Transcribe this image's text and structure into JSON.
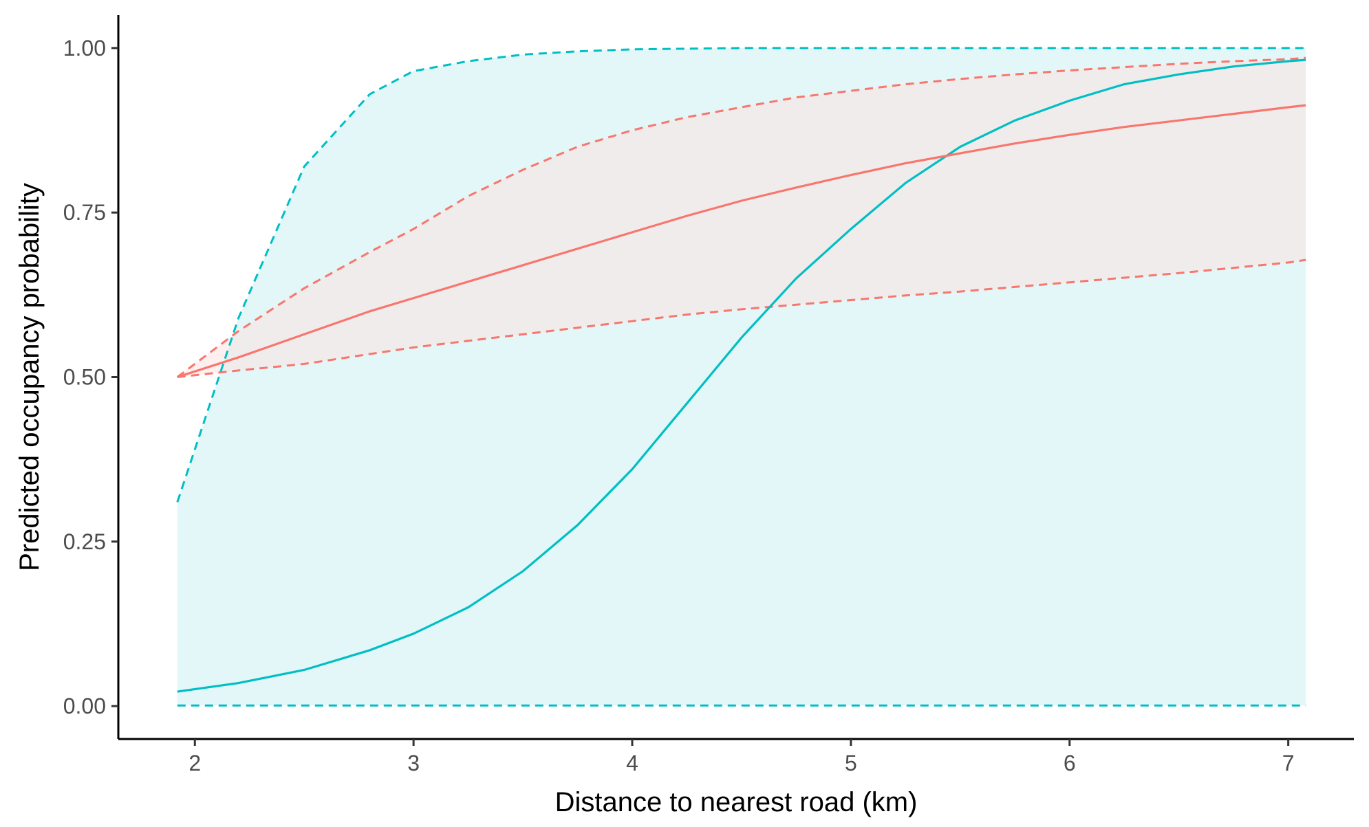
{
  "chart_data": {
    "type": "line",
    "title": "",
    "xlabel": "Distance to nearest road (km)",
    "ylabel": "Predicted occupancy probability",
    "xlim": [
      1.65,
      7.3
    ],
    "ylim": [
      -0.05,
      1.05
    ],
    "x_ticks": [
      {
        "value": 2,
        "label": "2"
      },
      {
        "value": 3,
        "label": "3"
      },
      {
        "value": 4,
        "label": "4"
      },
      {
        "value": 5,
        "label": "5"
      },
      {
        "value": 6,
        "label": "6"
      },
      {
        "value": 7,
        "label": "7"
      }
    ],
    "y_ticks": [
      {
        "value": 0.0,
        "label": "0.00"
      },
      {
        "value": 0.25,
        "label": "0.25"
      },
      {
        "value": 0.5,
        "label": "0.50"
      },
      {
        "value": 0.75,
        "label": "0.75"
      },
      {
        "value": 1.0,
        "label": "1.00"
      }
    ],
    "grid": false,
    "legend": "none",
    "x": [
      1.92,
      2.2,
      2.5,
      2.8,
      3.0,
      3.25,
      3.5,
      3.75,
      4.0,
      4.25,
      4.5,
      4.75,
      5.0,
      5.25,
      5.5,
      5.75,
      6.0,
      6.25,
      6.5,
      6.75,
      7.0,
      7.08
    ],
    "series": [
      {
        "color": "#00bfc4",
        "ribbon_color": "#e3f6f8",
        "fit": [
          0.022,
          0.035,
          0.055,
          0.085,
          0.11,
          0.15,
          0.205,
          0.275,
          0.36,
          0.46,
          0.56,
          0.65,
          0.725,
          0.795,
          0.85,
          0.89,
          0.92,
          0.945,
          0.96,
          0.972,
          0.98,
          0.982
        ],
        "lower": [
          0.001,
          0.001,
          0.001,
          0.001,
          0.001,
          0.001,
          0.001,
          0.001,
          0.001,
          0.001,
          0.001,
          0.001,
          0.001,
          0.001,
          0.001,
          0.001,
          0.001,
          0.001,
          0.001,
          0.001,
          0.001,
          0.001
        ],
        "upper": [
          0.31,
          0.59,
          0.82,
          0.93,
          0.965,
          0.98,
          0.99,
          0.995,
          0.998,
          0.999,
          1.0,
          1.0,
          1.0,
          1.0,
          1.0,
          1.0,
          1.0,
          1.0,
          1.0,
          1.0,
          1.0,
          1.0
        ]
      },
      {
        "color": "#f8766d",
        "ribbon_color": "#fce3e1",
        "fit": [
          0.5,
          0.53,
          0.565,
          0.6,
          0.62,
          0.645,
          0.67,
          0.695,
          0.72,
          0.745,
          0.768,
          0.788,
          0.807,
          0.825,
          0.84,
          0.855,
          0.868,
          0.88,
          0.89,
          0.9,
          0.91,
          0.913
        ],
        "lower": [
          0.5,
          0.51,
          0.52,
          0.535,
          0.545,
          0.555,
          0.565,
          0.575,
          0.585,
          0.595,
          0.603,
          0.61,
          0.617,
          0.624,
          0.63,
          0.637,
          0.644,
          0.651,
          0.658,
          0.666,
          0.674,
          0.678
        ],
        "upper": [
          0.5,
          0.57,
          0.635,
          0.69,
          0.725,
          0.775,
          0.815,
          0.85,
          0.875,
          0.895,
          0.91,
          0.925,
          0.935,
          0.945,
          0.953,
          0.96,
          0.966,
          0.971,
          0.976,
          0.98,
          0.983,
          0.985
        ]
      }
    ]
  }
}
